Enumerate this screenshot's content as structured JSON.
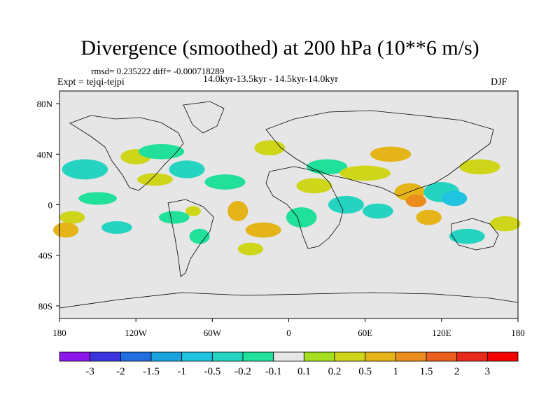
{
  "title": "Divergence (smoothed) at 200 hPa (10**6 m/s)",
  "stats": "rmsd= 0.235222 diff= -0.000718289",
  "experiment": "Expt = tejqi-tejpi",
  "period": "14.0kyr-13.5kyr - 14.5kyr-14.0kyr",
  "season": "DJF",
  "lon_ticks": [
    "180",
    "120W",
    "60W",
    "0",
    "60E",
    "120E",
    "180"
  ],
  "lat_ticks": [
    "80N",
    "40N",
    "0",
    "40S",
    "80S"
  ],
  "colorbar": {
    "labels": [
      "-3",
      "-2",
      "-1.5",
      "-1",
      "-0.5",
      "-0.2",
      "-0.1",
      "0.1",
      "0.2",
      "0.5",
      "1",
      "1.5",
      "2",
      "3"
    ],
    "colors": [
      "#8b17e8",
      "#3a34de",
      "#1f6fe0",
      "#1aa3df",
      "#20c4e0",
      "#25d4c0",
      "#20e09a",
      "#e6e6e6",
      "#a5de1e",
      "#cfd61a",
      "#e4b418",
      "#ea8c1e",
      "#ea5e1e",
      "#e82a1a",
      "#f30000"
    ]
  },
  "field": [
    {
      "lon": -160,
      "lat": 28,
      "rx": 18,
      "ry": 8,
      "value": -0.5
    },
    {
      "lon": -150,
      "lat": 5,
      "rx": 15,
      "ry": 5,
      "value": -0.2
    },
    {
      "lon": -170,
      "lat": -10,
      "rx": 10,
      "ry": 5,
      "value": 0.2
    },
    {
      "lon": -175,
      "lat": -20,
      "rx": 10,
      "ry": 6,
      "value": 0.5
    },
    {
      "lon": -135,
      "lat": -18,
      "rx": 12,
      "ry": 5,
      "value": -0.5
    },
    {
      "lon": -120,
      "lat": 38,
      "rx": 12,
      "ry": 6,
      "value": 0.2
    },
    {
      "lon": -105,
      "lat": 20,
      "rx": 14,
      "ry": 5,
      "value": 0.2
    },
    {
      "lon": -100,
      "lat": 42,
      "rx": 18,
      "ry": 6,
      "value": -0.2
    },
    {
      "lon": -80,
      "lat": 28,
      "rx": 14,
      "ry": 7,
      "value": -0.5
    },
    {
      "lon": -90,
      "lat": -10,
      "rx": 12,
      "ry": 5,
      "value": -0.2
    },
    {
      "lon": -75,
      "lat": -5,
      "rx": 6,
      "ry": 4,
      "value": 0.2
    },
    {
      "lon": -70,
      "lat": -25,
      "rx": 8,
      "ry": 6,
      "value": -0.2
    },
    {
      "lon": -50,
      "lat": 18,
      "rx": 16,
      "ry": 6,
      "value": -0.2
    },
    {
      "lon": -40,
      "lat": -5,
      "rx": 8,
      "ry": 8,
      "value": 0.5
    },
    {
      "lon": -20,
      "lat": -20,
      "rx": 14,
      "ry": 6,
      "value": 0.5
    },
    {
      "lon": -30,
      "lat": -35,
      "rx": 10,
      "ry": 5,
      "value": 0.2
    },
    {
      "lon": -15,
      "lat": 45,
      "rx": 12,
      "ry": 6,
      "value": 0.2
    },
    {
      "lon": 10,
      "lat": -10,
      "rx": 12,
      "ry": 8,
      "value": -0.2
    },
    {
      "lon": 20,
      "lat": 15,
      "rx": 14,
      "ry": 6,
      "value": 0.2
    },
    {
      "lon": 30,
      "lat": 30,
      "rx": 16,
      "ry": 6,
      "value": -0.2
    },
    {
      "lon": 45,
      "lat": 0,
      "rx": 14,
      "ry": 7,
      "value": -0.5
    },
    {
      "lon": 60,
      "lat": 25,
      "rx": 20,
      "ry": 6,
      "value": 0.2
    },
    {
      "lon": 70,
      "lat": -5,
      "rx": 12,
      "ry": 6,
      "value": -0.5
    },
    {
      "lon": 80,
      "lat": 40,
      "rx": 16,
      "ry": 6,
      "value": 0.5
    },
    {
      "lon": 95,
      "lat": 10,
      "rx": 12,
      "ry": 7,
      "value": 0.5
    },
    {
      "lon": 100,
      "lat": 3,
      "rx": 8,
      "ry": 5,
      "value": 1
    },
    {
      "lon": 110,
      "lat": -10,
      "rx": 10,
      "ry": 6,
      "value": 0.5
    },
    {
      "lon": 120,
      "lat": 10,
      "rx": 14,
      "ry": 8,
      "value": -0.5
    },
    {
      "lon": 130,
      "lat": 5,
      "rx": 10,
      "ry": 6,
      "value": -1
    },
    {
      "lon": 140,
      "lat": -25,
      "rx": 14,
      "ry": 6,
      "value": -0.5
    },
    {
      "lon": 150,
      "lat": 30,
      "rx": 16,
      "ry": 6,
      "value": 0.2
    },
    {
      "lon": 170,
      "lat": -15,
      "rx": 12,
      "ry": 6,
      "value": 0.2
    }
  ]
}
